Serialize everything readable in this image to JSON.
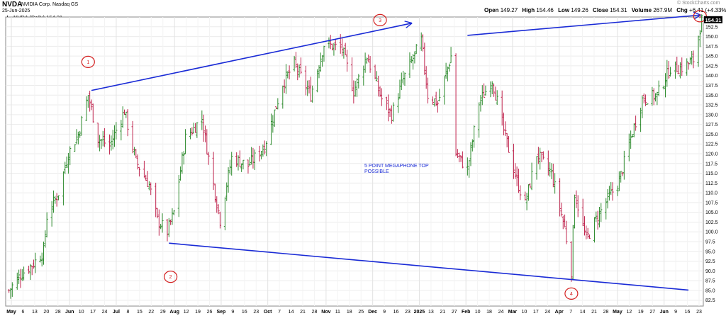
{
  "header": {
    "ticker": "NVDA",
    "company": "NVIDIA Corp. Nasdaq GS",
    "date": "25-Jun-2025",
    "legend": "NVDA (Daily) 154.31",
    "watermark": "© StockCharts.com",
    "quote": [
      {
        "label": "Open",
        "value": "149.27"
      },
      {
        "label": "High",
        "value": "154.46"
      },
      {
        "label": "Low",
        "value": "149.26"
      },
      {
        "label": "Close",
        "value": "154.31"
      },
      {
        "label": "Volume",
        "value": "267.9M"
      },
      {
        "label": "Chg",
        "value": "+6.41 (+4.33%)"
      }
    ]
  },
  "chart_data": {
    "type": "ohlc",
    "title": "NVDA (Daily) 154.31",
    "ylim": [
      81,
      155
    ],
    "y_ticks": [
      82.5,
      85.0,
      87.5,
      90.0,
      92.5,
      95.0,
      97.5,
      100.0,
      102.5,
      105.0,
      107.5,
      110.0,
      112.5,
      115.0,
      117.5,
      120.0,
      122.5,
      125.0,
      127.5,
      130.0,
      132.5,
      135.0,
      137.5,
      140.0,
      142.5,
      145.0,
      147.5,
      150.0,
      152.5
    ],
    "last_price_label": "154.31",
    "x_ticks": [
      "May",
      "6",
      "13",
      "20",
      "28",
      "Jun",
      "10",
      "17",
      "24",
      "Jul",
      "8",
      "15",
      "22",
      "29",
      "Aug",
      "12",
      "19",
      "26",
      "Sep",
      "9",
      "16",
      "23",
      "Oct",
      "7",
      "14",
      "21",
      "28",
      "Nov",
      "11",
      "18",
      "25",
      "Dec",
      "9",
      "16",
      "23",
      "2025",
      "13",
      "21",
      "27",
      "Feb",
      "10",
      "18",
      "24",
      "Mar",
      "10",
      "17",
      "24",
      "Apr",
      "7",
      "14",
      "21",
      "28",
      "May",
      "12",
      "19",
      "27",
      "Jun",
      "9",
      "16",
      "23"
    ],
    "x_tick_bold": [
      "May",
      "Jun",
      "Jul",
      "Aug",
      "Sep",
      "Oct",
      "Nov",
      "Dec",
      "2025",
      "Feb",
      "Mar",
      "Apr"
    ],
    "price_path": [
      {
        "date": "2024-05-01",
        "price": 85
      },
      {
        "date": "2024-05-08",
        "price": 89
      },
      {
        "date": "2024-05-16",
        "price": 92
      },
      {
        "date": "2024-05-22",
        "price": 95
      },
      {
        "date": "2024-05-24",
        "price": 104
      },
      {
        "date": "2024-05-31",
        "price": 110
      },
      {
        "date": "2024-06-06",
        "price": 120
      },
      {
        "date": "2024-06-12",
        "price": 125
      },
      {
        "date": "2024-06-18",
        "price": 135
      },
      {
        "date": "2024-06-24",
        "price": 124
      },
      {
        "date": "2024-07-01",
        "price": 122
      },
      {
        "date": "2024-07-10",
        "price": 131
      },
      {
        "date": "2024-07-17",
        "price": 118
      },
      {
        "date": "2024-07-25",
        "price": 112
      },
      {
        "date": "2024-07-30",
        "price": 103
      },
      {
        "date": "2024-08-05",
        "price": 100
      },
      {
        "date": "2024-08-09",
        "price": 105
      },
      {
        "date": "2024-08-16",
        "price": 124
      },
      {
        "date": "2024-08-26",
        "price": 129
      },
      {
        "date": "2024-08-30",
        "price": 119
      },
      {
        "date": "2024-09-06",
        "price": 103
      },
      {
        "date": "2024-09-13",
        "price": 119
      },
      {
        "date": "2024-09-23",
        "price": 117
      },
      {
        "date": "2024-10-03",
        "price": 122
      },
      {
        "date": "2024-10-14",
        "price": 138
      },
      {
        "date": "2024-10-21",
        "price": 143
      },
      {
        "date": "2024-10-31",
        "price": 135
      },
      {
        "date": "2024-11-08",
        "price": 148
      },
      {
        "date": "2024-11-19",
        "price": 147
      },
      {
        "date": "2024-11-26",
        "price": 136
      },
      {
        "date": "2024-12-04",
        "price": 145
      },
      {
        "date": "2024-12-13",
        "price": 134
      },
      {
        "date": "2024-12-19",
        "price": 130
      },
      {
        "date": "2024-12-26",
        "price": 139
      },
      {
        "date": "2025-01-06",
        "price": 149
      },
      {
        "date": "2025-01-10",
        "price": 135
      },
      {
        "date": "2025-01-16",
        "price": 133
      },
      {
        "date": "2025-01-24",
        "price": 145
      },
      {
        "date": "2025-01-27",
        "price": 120
      },
      {
        "date": "2025-02-03",
        "price": 116
      },
      {
        "date": "2025-02-10",
        "price": 133
      },
      {
        "date": "2025-02-18",
        "price": 139
      },
      {
        "date": "2025-02-25",
        "price": 126
      },
      {
        "date": "2025-03-05",
        "price": 113
      },
      {
        "date": "2025-03-10",
        "price": 107
      },
      {
        "date": "2025-03-17",
        "price": 120
      },
      {
        "date": "2025-03-26",
        "price": 115
      },
      {
        "date": "2025-04-03",
        "price": 101
      },
      {
        "date": "2025-04-07",
        "price": 90
      },
      {
        "date": "2025-04-09",
        "price": 110
      },
      {
        "date": "2025-04-16",
        "price": 98
      },
      {
        "date": "2025-04-23",
        "price": 104
      },
      {
        "date": "2025-04-30",
        "price": 109
      },
      {
        "date": "2025-05-06",
        "price": 113
      },
      {
        "date": "2025-05-13",
        "price": 124
      },
      {
        "date": "2025-05-20",
        "price": 134
      },
      {
        "date": "2025-05-29",
        "price": 135
      },
      {
        "date": "2025-06-06",
        "price": 142
      },
      {
        "date": "2025-06-13",
        "price": 142
      },
      {
        "date": "2025-06-20",
        "price": 144
      },
      {
        "date": "2025-06-25",
        "price": 154.31
      }
    ],
    "trendlines": [
      {
        "points": [
          {
            "date": "2024-06-20",
            "price": 136.2
          },
          {
            "date": "2024-12-31",
            "price": 153.4
          }
        ],
        "arrow": true
      },
      {
        "points": [
          {
            "date": "2025-02-03",
            "price": 150.3
          },
          {
            "date": "2025-06-24",
            "price": 155.5
          }
        ],
        "arrow": true
      },
      {
        "points": [
          {
            "date": "2024-08-06",
            "price": 97.1
          },
          {
            "date": "2025-06-17",
            "price": 85.1
          }
        ],
        "arrow": false
      }
    ],
    "markers": [
      {
        "label": "1",
        "date": "2024-06-18",
        "price": 143.5
      },
      {
        "label": "2",
        "date": "2024-08-07",
        "price": 88.5
      },
      {
        "label": "3",
        "date": "2024-12-12",
        "price": 154.2
      },
      {
        "label": "4",
        "date": "2025-04-07",
        "price": 84.2
      },
      {
        "label": "5",
        "date": "2025-06-24",
        "price": 155.2
      }
    ],
    "annotation": [
      "5 POINT MEGAPHONE TOP",
      "POSSIBLE"
    ]
  }
}
